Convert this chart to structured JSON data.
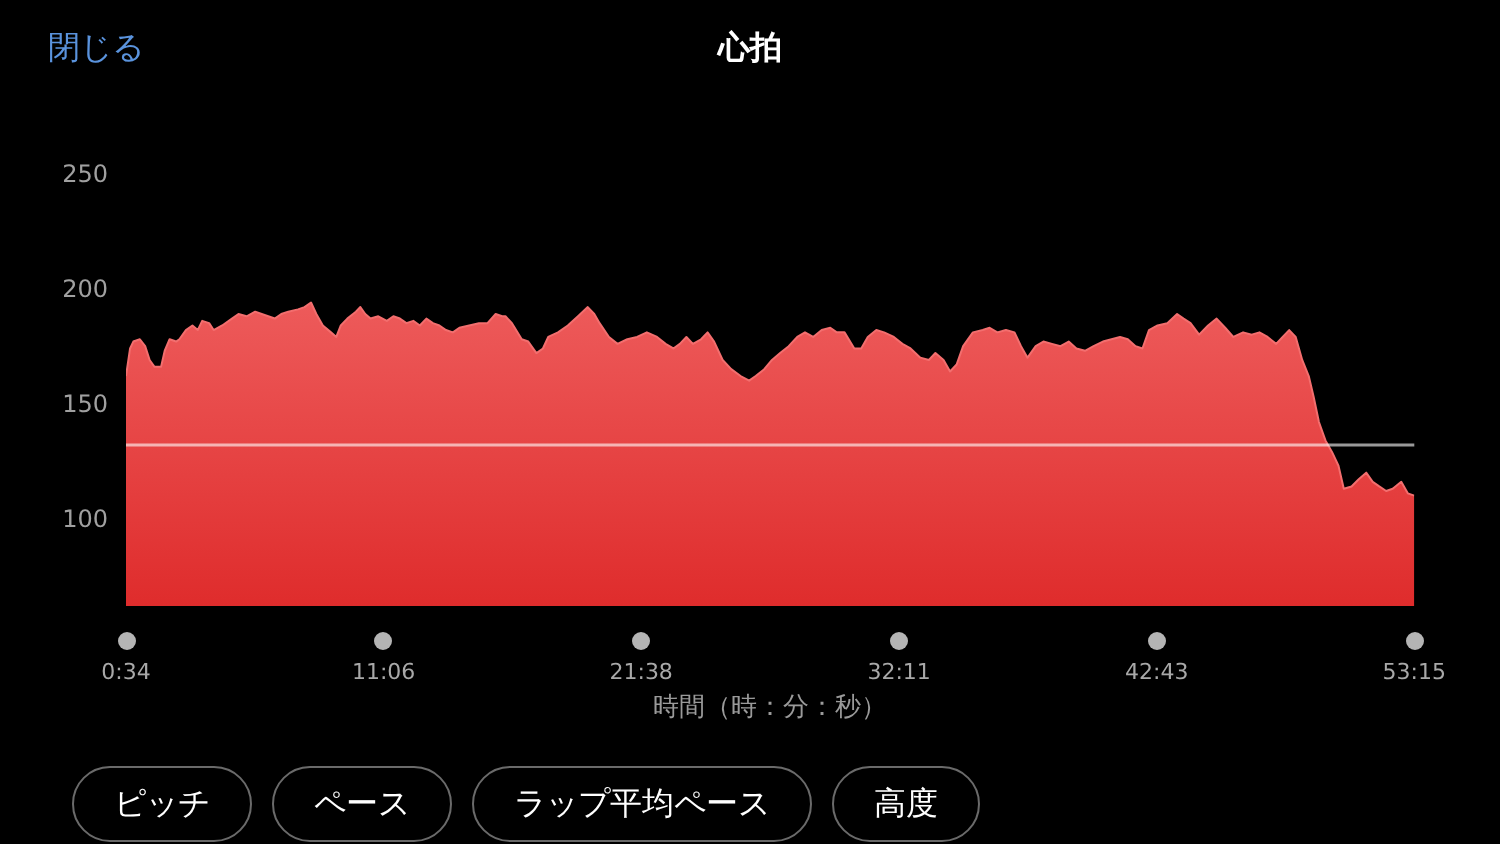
{
  "chart_data": {
    "type": "area",
    "title": "心拍",
    "xlabel": "時間（時：分：秒）",
    "annotations": [
      "閉じる",
      "ピッチ",
      "ペース",
      "ラップ平均ペース",
      "高度"
    ],
    "x": [
      34,
      44,
      52,
      68,
      81,
      92,
      104,
      120,
      129,
      141,
      157,
      165,
      181,
      197,
      210,
      221,
      238,
      249,
      270,
      294,
      310,
      330,
      351,
      367,
      383,
      399,
      415,
      432,
      456,
      472,
      488,
      501,
      517,
      537,
      550,
      561,
      577,
      598,
      609,
      621,
      634,
      653,
      674,
      690,
      706,
      722,
      739,
      755,
      771,
      787,
      803,
      819,
      836,
      852,
      876,
      900,
      921,
      941,
      957,
      965,
      981,
      1005,
      1021,
      1041,
      1057,
      1070,
      1094,
      1118,
      1143,
      1167,
      1183,
      1196,
      1219,
      1240,
      1264,
      1288,
      1312,
      1337,
      1358,
      1377,
      1393,
      1409,
      1425,
      1445,
      1461,
      1477,
      1498,
      1519,
      1542,
      1563,
      1579,
      1600,
      1619,
      1639,
      1660,
      1681,
      1700,
      1720,
      1741,
      1762,
      1778,
      1797,
      1821,
      1838,
      1854,
      1875,
      1894,
      1918,
      1939,
      1959,
      1983,
      2004,
      2020,
      2040,
      2056,
      2072,
      2088,
      2112,
      2136,
      2153,
      2172,
      2193,
      2214,
      2230,
      2246,
      2266,
      2285,
      2306,
      2327,
      2347,
      2366,
      2387,
      2408,
      2431,
      2452,
      2473,
      2492,
      2511,
      2528,
      2544,
      2565,
      2589,
      2613,
      2629,
      2646,
      2667,
      2689,
      2710,
      2731,
      2751,
      2775,
      2796,
      2815,
      2835,
      2856,
      2872,
      2888,
      2904,
      2920,
      2936,
      2948,
      2961,
      2977,
      2993,
      3009,
      3022,
      3041,
      3058,
      3077,
      3093,
      3109,
      3126,
      3142,
      3163,
      3179,
      3195
    ],
    "values": [
      163,
      175,
      178,
      179,
      176,
      170,
      167,
      167,
      174,
      179,
      178,
      179,
      183,
      185,
      183,
      187,
      186,
      183,
      185,
      188,
      190,
      189,
      191,
      190,
      189,
      188,
      190,
      191,
      192,
      193,
      195,
      190,
      185,
      182,
      180,
      185,
      188,
      191,
      193,
      190,
      188,
      189,
      187,
      189,
      188,
      186,
      187,
      185,
      188,
      186,
      185,
      183,
      182,
      184,
      185,
      186,
      186,
      190,
      189,
      189,
      186,
      179,
      178,
      173,
      175,
      180,
      182,
      185,
      189,
      193,
      190,
      186,
      180,
      177,
      179,
      180,
      182,
      180,
      177,
      175,
      177,
      180,
      177,
      179,
      182,
      178,
      170,
      166,
      163,
      161,
      163,
      166,
      170,
      173,
      176,
      180,
      182,
      180,
      183,
      184,
      182,
      182,
      175,
      175,
      180,
      183,
      182,
      180,
      177,
      175,
      171,
      170,
      173,
      170,
      165,
      168,
      176,
      182,
      183,
      184,
      182,
      183,
      182,
      176,
      171,
      176,
      178,
      177,
      176,
      178,
      175,
      174,
      176,
      178,
      179,
      180,
      179,
      176,
      175,
      183,
      185,
      186,
      190,
      188,
      186,
      181,
      185,
      188,
      184,
      180,
      182,
      181,
      182,
      180,
      177,
      180,
      183,
      180,
      170,
      163,
      154,
      143,
      135,
      130,
      124,
      114,
      115,
      118,
      121,
      117,
      115,
      113,
      114,
      117,
      112,
      111
    ],
    "color": "#f04a4a",
    "marker": "none",
    "xlim": [
      34,
      3195
    ],
    "xticks": [
      {
        "value": 34,
        "label": "0:34"
      },
      {
        "value": 666,
        "label": "11:06"
      },
      {
        "value": 1298,
        "label": "21:38"
      },
      {
        "value": 1931,
        "label": "32:11"
      },
      {
        "value": 2563,
        "label": "42:43"
      },
      {
        "value": 3195,
        "label": "53:15"
      }
    ],
    "ylim": [
      63,
      250
    ],
    "yticks": [
      100,
      150,
      200,
      250
    ],
    "ref_lines": [
      {
        "axis": "y",
        "value": 133,
        "color": "#ffffff"
      }
    ]
  }
}
